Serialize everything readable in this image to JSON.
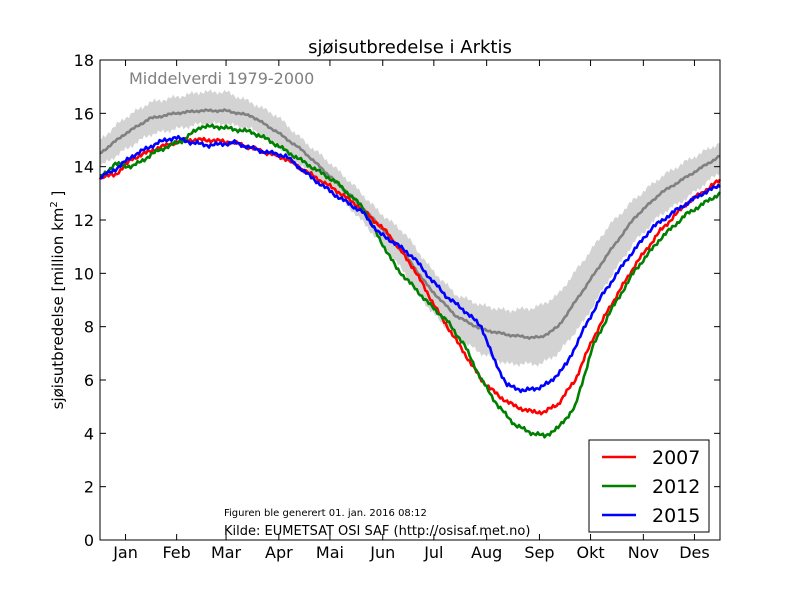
{
  "chart_data": {
    "type": "line",
    "title": "sjøisutbredelse i Arktis",
    "ylabel": "sjøisutbredelse [million km",
    "ylabel_sup": "2",
    "ylabel_end": " ]",
    "xlabel": "",
    "ylim": [
      0,
      18
    ],
    "yticks": [
      0,
      2,
      4,
      6,
      8,
      10,
      12,
      14,
      16,
      18
    ],
    "xlim": [
      1,
      365
    ],
    "months": [
      "Jan",
      "Feb",
      "Mar",
      "Apr",
      "Mai",
      "Jun",
      "Jul",
      "Aug",
      "Sep",
      "Okt",
      "Nov",
      "Des"
    ],
    "month_label_days": [
      16,
      46,
      75,
      106,
      136,
      167,
      197,
      228,
      259,
      289,
      320,
      350
    ],
    "legend_position": "bottom-right",
    "grid": false,
    "annotation_mean": "Middelverdi 1979-2000",
    "annotation_generated": "Figuren ble generert 01. jan. 2016 08:12",
    "annotation_source": "Kilde: EUMETSAT OSI SAF (http://osisaf.met.no)",
    "band": {
      "x": [
        1,
        15,
        30,
        45,
        60,
        75,
        90,
        105,
        120,
        135,
        150,
        165,
        180,
        195,
        210,
        225,
        240,
        255,
        260,
        270,
        285,
        300,
        315,
        330,
        345,
        365
      ],
      "low": [
        14.0,
        14.6,
        15.2,
        15.4,
        15.6,
        15.6,
        15.4,
        14.8,
        14.0,
        13.2,
        12.3,
        11.2,
        10.0,
        8.6,
        7.6,
        7.0,
        6.6,
        6.6,
        6.6,
        7.0,
        8.2,
        9.8,
        11.2,
        12.2,
        12.8,
        13.8
      ],
      "high": [
        15.0,
        15.8,
        16.4,
        16.6,
        16.8,
        16.8,
        16.4,
        15.9,
        15.0,
        14.2,
        13.3,
        12.3,
        11.5,
        10.2,
        9.2,
        8.8,
        8.6,
        8.7,
        8.8,
        9.2,
        10.5,
        11.8,
        12.8,
        13.6,
        14.2,
        14.9
      ]
    },
    "series": [
      {
        "name": "Middelverdi 1979-2000",
        "color": "#808080",
        "x": [
          1,
          15,
          30,
          45,
          60,
          75,
          90,
          105,
          120,
          135,
          150,
          165,
          180,
          195,
          210,
          225,
          240,
          252,
          260,
          270,
          285,
          300,
          315,
          330,
          345,
          365
        ],
        "values": [
          14.5,
          15.2,
          15.8,
          16.0,
          16.1,
          16.1,
          15.9,
          15.3,
          14.6,
          13.7,
          12.8,
          11.8,
          10.7,
          9.4,
          8.4,
          7.9,
          7.7,
          7.6,
          7.6,
          8.0,
          9.4,
          10.8,
          12.1,
          13.0,
          13.6,
          14.4
        ]
      },
      {
        "name": "2007",
        "color": "#ff0000",
        "x": [
          1,
          10,
          20,
          35,
          50,
          65,
          80,
          95,
          110,
          125,
          140,
          155,
          170,
          185,
          200,
          215,
          225,
          235,
          245,
          255,
          262,
          270,
          280,
          290,
          300,
          315,
          330,
          345,
          365
        ],
        "values": [
          13.6,
          13.7,
          14.3,
          14.7,
          15.0,
          15.0,
          14.9,
          14.6,
          14.3,
          13.7,
          13.1,
          12.4,
          11.5,
          10.2,
          8.5,
          7.0,
          6.0,
          5.4,
          5.0,
          4.8,
          4.8,
          5.1,
          6.0,
          7.5,
          8.7,
          10.3,
          11.6,
          12.6,
          13.5
        ]
      },
      {
        "name": "2012",
        "color": "#008000",
        "x": [
          1,
          10,
          20,
          35,
          50,
          60,
          70,
          80,
          90,
          100,
          110,
          125,
          140,
          155,
          165,
          175,
          185,
          195,
          205,
          215,
          225,
          235,
          245,
          255,
          262,
          270,
          280,
          290,
          300,
          315,
          330,
          345,
          365
        ],
        "values": [
          13.6,
          14.1,
          14.0,
          14.6,
          15.0,
          15.5,
          15.5,
          15.4,
          15.3,
          15.0,
          14.6,
          14.0,
          13.4,
          12.5,
          11.3,
          10.2,
          9.5,
          8.8,
          8.2,
          7.3,
          6.0,
          5.0,
          4.3,
          4.0,
          3.9,
          4.2,
          5.0,
          7.2,
          8.5,
          10.1,
          11.3,
          12.2,
          13.0
        ]
      },
      {
        "name": "2015",
        "color": "#0000ff",
        "x": [
          1,
          10,
          20,
          35,
          45,
          55,
          65,
          80,
          95,
          110,
          125,
          140,
          155,
          165,
          175,
          185,
          195,
          205,
          215,
          225,
          232,
          240,
          250,
          258,
          265,
          275,
          285,
          295,
          310,
          325,
          340,
          355,
          365
        ],
        "values": [
          13.6,
          13.9,
          14.4,
          14.9,
          15.1,
          14.9,
          14.8,
          14.9,
          14.6,
          14.4,
          13.6,
          12.9,
          12.3,
          11.5,
          11.1,
          10.6,
          9.8,
          9.1,
          8.6,
          8.0,
          6.8,
          5.8,
          5.6,
          5.7,
          5.9,
          6.6,
          7.9,
          9.1,
          10.5,
          11.7,
          12.4,
          13.0,
          13.3
        ]
      }
    ]
  }
}
